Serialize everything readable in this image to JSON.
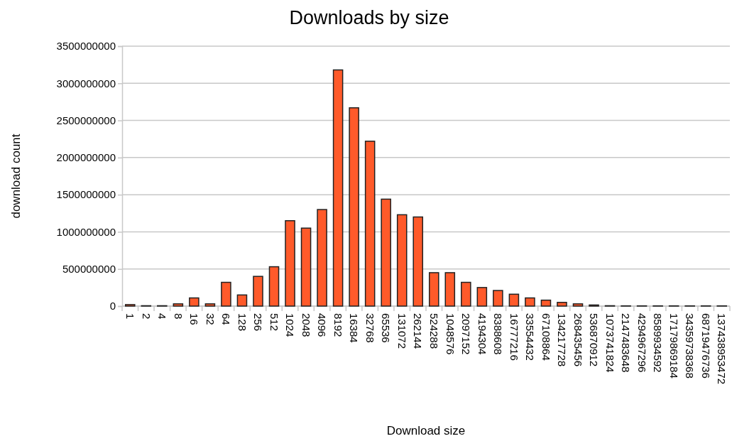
{
  "chart_data": {
    "type": "bar",
    "title": "Downloads by size",
    "xlabel": "Download size",
    "ylabel": "download count",
    "categories": [
      "1",
      "2",
      "4",
      "8",
      "16",
      "32",
      "64",
      "128",
      "256",
      "512",
      "1024",
      "2048",
      "4096",
      "8192",
      "16384",
      "32768",
      "65536",
      "131072",
      "262144",
      "524288",
      "1048576",
      "2097152",
      "4194304",
      "8388608",
      "16777216",
      "33554432",
      "67108864",
      "134217728",
      "268435456",
      "536870912",
      "1073741824",
      "2147483648",
      "4294967296",
      "8589934592",
      "17179869184",
      "34359738368",
      "68719476736",
      "137438953472"
    ],
    "values": [
      20000000,
      5000000,
      5000000,
      30000000,
      110000000,
      30000000,
      320000000,
      150000000,
      400000000,
      530000000,
      1150000000,
      1050000000,
      1300000000,
      3180000000,
      2670000000,
      2220000000,
      1440000000,
      1230000000,
      1200000000,
      450000000,
      450000000,
      320000000,
      250000000,
      210000000,
      160000000,
      110000000,
      80000000,
      50000000,
      30000000,
      15000000,
      5000000,
      3000000,
      3000000,
      3000000,
      3000000,
      3000000,
      3000000,
      3000000
    ],
    "color": "#ff5a2a",
    "ylim": [
      0,
      3500000000
    ],
    "yticks": [
      0,
      500000000,
      1000000000,
      1500000000,
      2000000000,
      2500000000,
      3000000000,
      3500000000
    ],
    "grid": "y"
  }
}
